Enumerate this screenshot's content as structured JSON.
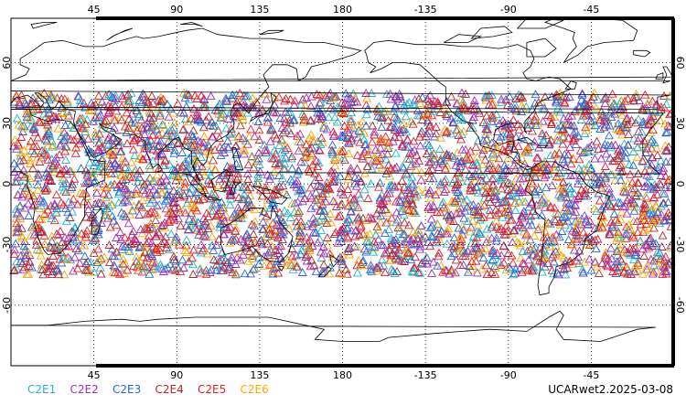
{
  "map": {
    "lon_ticks": [
      "45",
      "90",
      "135",
      "180",
      "-135",
      "-90",
      "-45"
    ],
    "lat_ticks": [
      "60",
      "30",
      "0",
      "-30",
      "-60"
    ],
    "grid": "dotted",
    "projection": "cylindrical-equidistant",
    "central_longitude": 0,
    "marker_shape": "triangle-outline",
    "marker_lat_range": [
      -45,
      45
    ]
  },
  "legend": [
    {
      "label": "C2E1",
      "color": "#1fb3d1"
    },
    {
      "label": "C2E2",
      "color": "#9b2fc2"
    },
    {
      "label": "C2E3",
      "color": "#2266d8"
    },
    {
      "label": "C2E4",
      "color": "#b8262a"
    },
    {
      "label": "C2E5",
      "color": "#ee1c24"
    },
    {
      "label": "C2E6",
      "color": "#f6a800"
    }
  ],
  "product_label": "UCARwet2.2025-03-08"
}
